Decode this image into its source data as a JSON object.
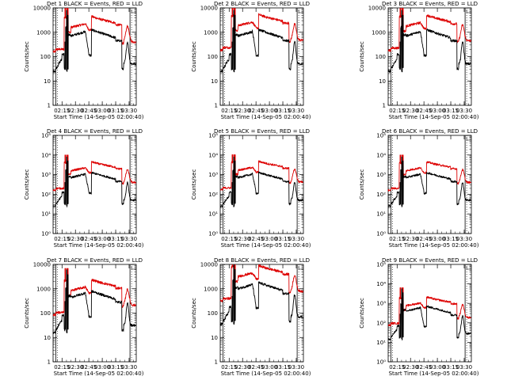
{
  "figure": {
    "title_template": "Det {n}  BLACK = Events, RED = LLD",
    "xlabel": "Start Time (14-Sep-05 02:00:40)",
    "ylabel": "Counts/sec",
    "x_ticks": [
      "02:15",
      "02:30",
      "02:45",
      "03:00",
      "03:15",
      "03:30"
    ],
    "x_tick_minutes": [
      15,
      30,
      45,
      60,
      75,
      90
    ],
    "xlim_minutes": [
      5,
      98
    ],
    "series_colors": {
      "events": "#000000",
      "lld": "#dd0000"
    }
  },
  "chart_data": [
    {
      "type": "line",
      "title": "Det 1  BLACK = Events, RED = LLD",
      "ylim": [
        1,
        10000
      ],
      "yticks": [
        {
          "v": 1,
          "label": "1"
        },
        {
          "v": 10,
          "label": "10"
        },
        {
          "v": 100,
          "label": "100"
        },
        {
          "v": 1000,
          "label": "1000"
        },
        {
          "v": 10000,
          "label": "10000"
        }
      ],
      "markers_minutes": [
        8,
        91
      ],
      "level": {
        "black": 1.0,
        "red": 1.0
      },
      "series": [
        {
          "name": "Events",
          "color": "#000000"
        },
        {
          "name": "LLD",
          "color": "#dd0000"
        }
      ]
    },
    {
      "type": "line",
      "title": "Det 2  BLACK = Events, RED = LLD",
      "ylim": [
        1,
        10000
      ],
      "yticks": [
        {
          "v": 1,
          "label": "1"
        },
        {
          "v": 10,
          "label": "10"
        },
        {
          "v": 100,
          "label": "100"
        },
        {
          "v": 1000,
          "label": "1000"
        },
        {
          "v": 10000,
          "label": "10000"
        }
      ],
      "markers_minutes": [
        8,
        91
      ],
      "level": {
        "black": 1.0,
        "red": 1.15
      },
      "series": [
        {
          "name": "Events",
          "color": "#000000"
        },
        {
          "name": "LLD",
          "color": "#dd0000"
        }
      ]
    },
    {
      "type": "line",
      "title": "Det 3  BLACK = Events, RED = LLD",
      "ylim": [
        1,
        10000
      ],
      "yticks": [
        {
          "v": 1,
          "label": "1"
        },
        {
          "v": 10,
          "label": "10"
        },
        {
          "v": 100,
          "label": "100"
        },
        {
          "v": 1000,
          "label": "1000"
        },
        {
          "v": 10000,
          "label": "10000"
        }
      ],
      "markers_minutes": [
        8,
        91
      ],
      "level": {
        "black": 1.0,
        "red": 1.1
      },
      "series": [
        {
          "name": "Events",
          "color": "#000000"
        },
        {
          "name": "LLD",
          "color": "#dd0000"
        }
      ]
    },
    {
      "type": "line",
      "title": "Det 4  BLACK = Events, RED = LLD",
      "ylim": [
        1,
        100000
      ],
      "yticks": [
        {
          "v": 1,
          "label": "10⁰"
        },
        {
          "v": 10,
          "label": "10¹"
        },
        {
          "v": 100,
          "label": "10²"
        },
        {
          "v": 1000,
          "label": "10³"
        },
        {
          "v": 10000,
          "label": "10⁴"
        },
        {
          "v": 100000,
          "label": "10⁵"
        }
      ],
      "markers_minutes": [
        8,
        91
      ],
      "level": {
        "black": 1.0,
        "red": 1.0
      },
      "series": [
        {
          "name": "Events",
          "color": "#000000"
        },
        {
          "name": "LLD",
          "color": "#dd0000"
        }
      ]
    },
    {
      "type": "line",
      "title": "Det 5  BLACK = Events, RED = LLD",
      "ylim": [
        1,
        100000
      ],
      "yticks": [
        {
          "v": 1,
          "label": "10⁰"
        },
        {
          "v": 10,
          "label": "10¹"
        },
        {
          "v": 100,
          "label": "10²"
        },
        {
          "v": 1000,
          "label": "10³"
        },
        {
          "v": 10000,
          "label": "10⁴"
        },
        {
          "v": 100000,
          "label": "10⁵"
        }
      ],
      "markers_minutes": [
        8,
        91
      ],
      "level": {
        "black": 1.0,
        "red": 1.05
      },
      "series": [
        {
          "name": "Events",
          "color": "#000000"
        },
        {
          "name": "LLD",
          "color": "#dd0000"
        }
      ]
    },
    {
      "type": "line",
      "title": "Det 6  BLACK = Events, RED = LLD",
      "ylim": [
        1,
        100000
      ],
      "yticks": [
        {
          "v": 1,
          "label": "10⁰"
        },
        {
          "v": 10,
          "label": "10¹"
        },
        {
          "v": 100,
          "label": "10²"
        },
        {
          "v": 1000,
          "label": "10³"
        },
        {
          "v": 10000,
          "label": "10⁴"
        },
        {
          "v": 100000,
          "label": "10⁵"
        }
      ],
      "markers_minutes": [
        8,
        91
      ],
      "level": {
        "black": 1.0,
        "red": 1.0
      },
      "series": [
        {
          "name": "Events",
          "color": "#000000"
        },
        {
          "name": "LLD",
          "color": "#dd0000"
        }
      ]
    },
    {
      "type": "line",
      "title": "Det 7  BLACK = Events, RED = LLD",
      "ylim": [
        1,
        10000
      ],
      "yticks": [
        {
          "v": 1,
          "label": "1"
        },
        {
          "v": 10,
          "label": "10"
        },
        {
          "v": 100,
          "label": "100"
        },
        {
          "v": 1000,
          "label": "1000"
        },
        {
          "v": 10000,
          "label": "10000"
        }
      ],
      "markers_minutes": [
        8,
        91
      ],
      "level": {
        "black": 0.6,
        "red": 0.45
      },
      "series": [
        {
          "name": "Events",
          "color": "#000000"
        },
        {
          "name": "LLD",
          "color": "#dd0000"
        }
      ]
    },
    {
      "type": "line",
      "title": "Det 8  BLACK = Events, RED = LLD",
      "ylim": [
        1,
        10000
      ],
      "yticks": [
        {
          "v": 1,
          "label": "1"
        },
        {
          "v": 10,
          "label": "10"
        },
        {
          "v": 100,
          "label": "100"
        },
        {
          "v": 1000,
          "label": "1000"
        },
        {
          "v": 10000,
          "label": "10000"
        }
      ],
      "markers_minutes": [
        8,
        91
      ],
      "level": {
        "black": 1.3,
        "red": 1.6
      },
      "series": [
        {
          "name": "Events",
          "color": "#000000"
        },
        {
          "name": "LLD",
          "color": "#dd0000"
        }
      ]
    },
    {
      "type": "line",
      "title": "Det 9  BLACK = Events, RED = LLD",
      "ylim": [
        1,
        100000
      ],
      "yticks": [
        {
          "v": 1,
          "label": "10⁰"
        },
        {
          "v": 10,
          "label": "10¹"
        },
        {
          "v": 100,
          "label": "10²"
        },
        {
          "v": 1000,
          "label": "10³"
        },
        {
          "v": 10000,
          "label": "10⁴"
        },
        {
          "v": 100000,
          "label": "10⁵"
        }
      ],
      "markers_minutes": [
        8,
        91
      ],
      "level": {
        "black": 0.5,
        "red": 0.35
      },
      "series": [
        {
          "name": "Events",
          "color": "#000000"
        },
        {
          "name": "LLD",
          "color": "#dd0000"
        }
      ]
    }
  ]
}
